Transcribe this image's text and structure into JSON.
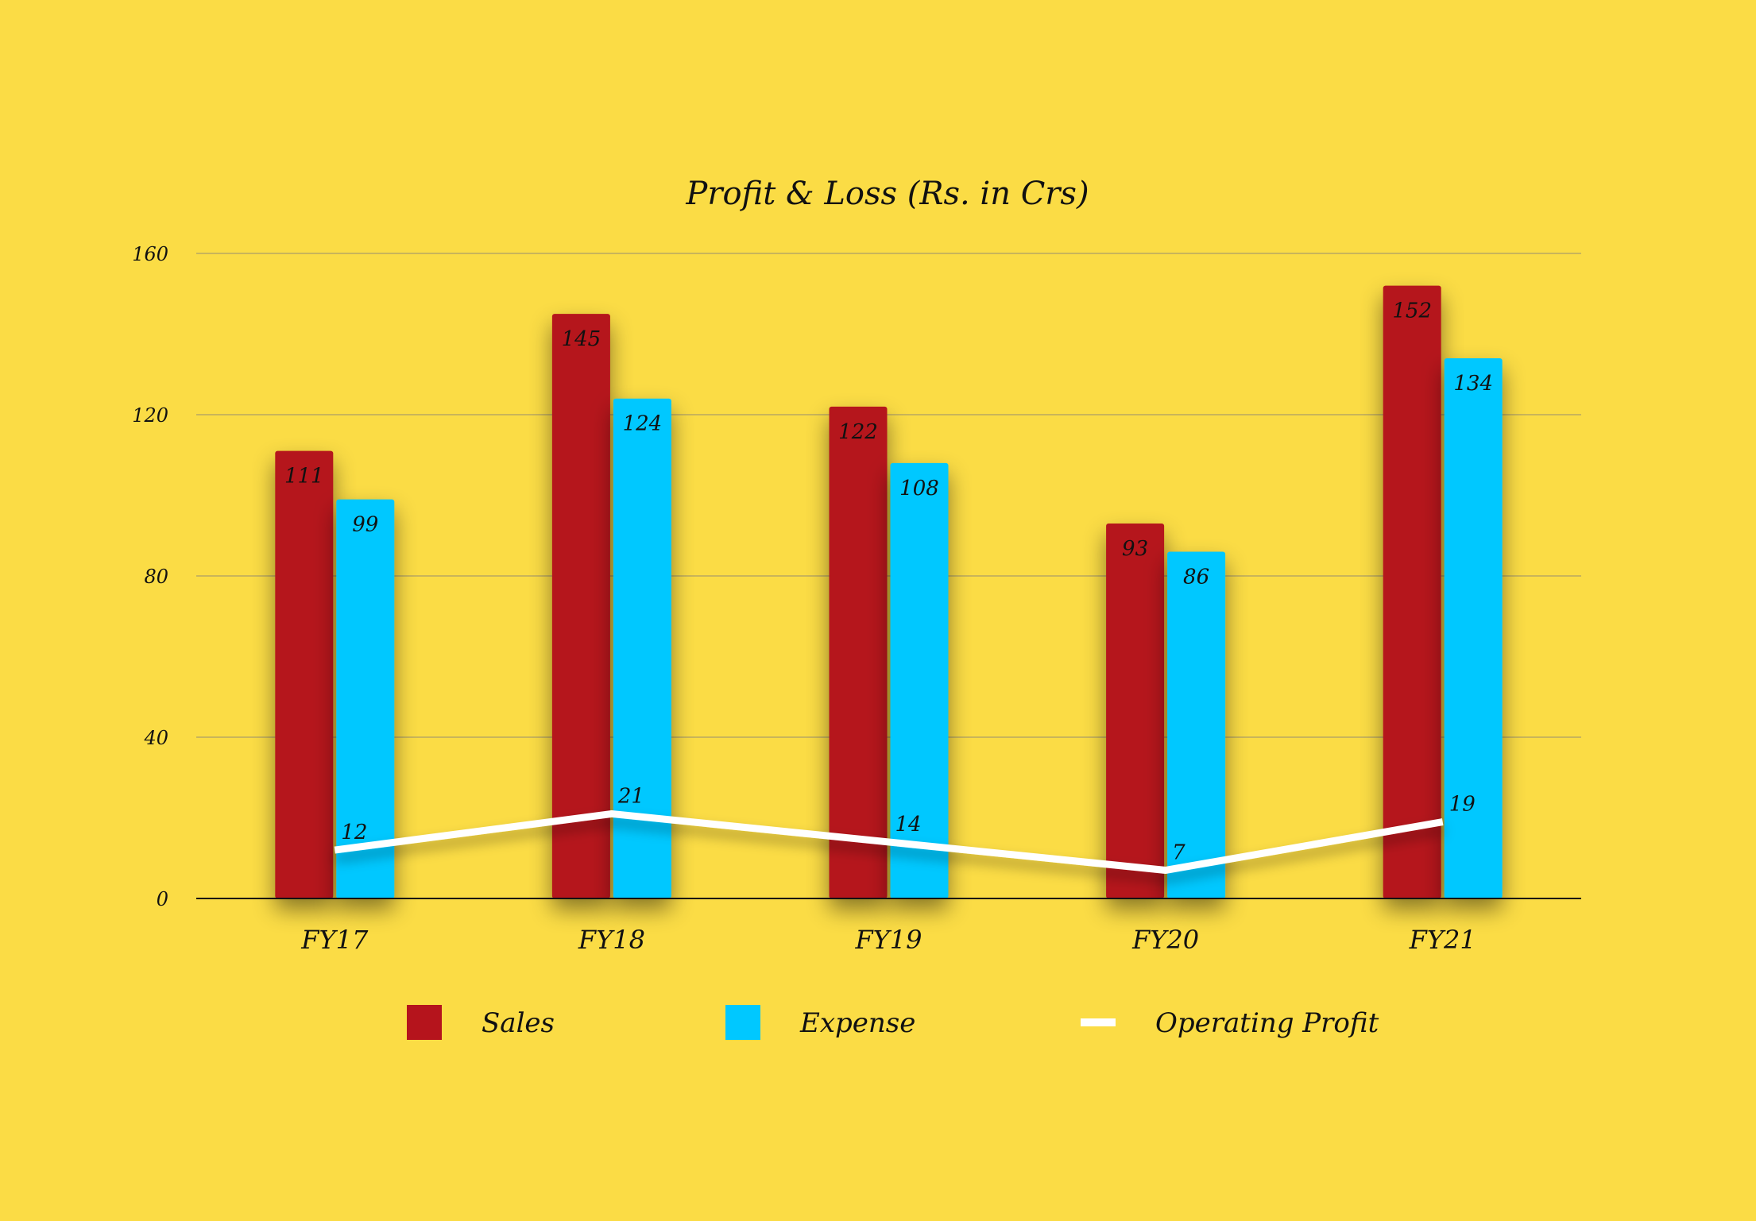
{
  "chart_data": {
    "type": "bar",
    "title": "Profit & Loss (Rs. in Crs)",
    "xlabel": "",
    "ylabel": "",
    "categories": [
      "FY17",
      "FY18",
      "FY19",
      "FY20",
      "FY21"
    ],
    "ylim": [
      0,
      160
    ],
    "yticks": [
      "0",
      "40",
      "80",
      "120",
      "160"
    ],
    "grid": true,
    "legend_position": "bottom",
    "series": [
      {
        "name": "Sales",
        "kind": "bar",
        "color": "#B5141C",
        "values": [
          111,
          145,
          122,
          93,
          152
        ]
      },
      {
        "name": "Expense",
        "kind": "bar",
        "color": "#00C8FF",
        "values": [
          99,
          124,
          108,
          86,
          134
        ]
      },
      {
        "name": "Operating Profit",
        "kind": "line",
        "color": "#FFFFFF",
        "values": [
          12,
          21,
          14,
          7,
          19
        ]
      }
    ]
  }
}
